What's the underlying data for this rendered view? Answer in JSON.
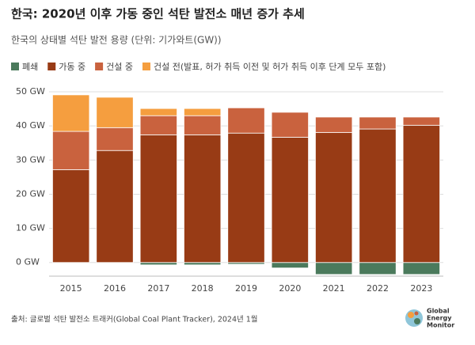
{
  "chart_data": {
    "type": "stacked-bar",
    "title": "한국: 2020년 이후 가동 중인 석탄 발전소 매년 증가 추세",
    "subtitle": "한국의 상태별 석탄 발전 용량 (단위: 기가와트(GW))",
    "categories": [
      "2015",
      "2016",
      "2017",
      "2018",
      "2019",
      "2020",
      "2021",
      "2022",
      "2023"
    ],
    "series": [
      {
        "name": "폐쇄",
        "color": "#4b7a5c",
        "values": [
          0,
          0,
          -0.7,
          -0.7,
          -0.5,
          -1.6,
          -3.5,
          -3.5,
          -3.5
        ]
      },
      {
        "name": "가동 중",
        "color": "#983b15",
        "values": [
          27.2,
          32.8,
          37.4,
          37.4,
          37.9,
          36.7,
          38.1,
          39.1,
          40.2
        ]
      },
      {
        "name": "건설 중",
        "color": "#c9623e",
        "values": [
          11.2,
          6.7,
          5.6,
          5.6,
          7.4,
          7.3,
          4.5,
          3.5,
          2.4
        ]
      },
      {
        "name": "건설 전(발표, 허가 취득 이전 및 허가 취득 이후 단계 모두 포함)",
        "color": "#f59e3f",
        "values": [
          10.7,
          8.9,
          2.1,
          2.1,
          0,
          0,
          0,
          0,
          0
        ]
      }
    ],
    "ylim": [
      -4,
      50
    ],
    "yticks": [
      {
        "value": 0,
        "label": "0 GW"
      },
      {
        "value": 10,
        "label": "10 GW"
      },
      {
        "value": 20,
        "label": "20 GW"
      },
      {
        "value": 30,
        "label": "30 GW"
      },
      {
        "value": 40,
        "label": "40 GW"
      },
      {
        "value": 50,
        "label": "50 GW"
      }
    ],
    "grid": true,
    "source": "출처: 글로벌 석탄 발전소 트래커(Global Coal Plant Tracker), 2024년 1월",
    "logo": [
      "Global",
      "Energy",
      "Monitor"
    ]
  }
}
